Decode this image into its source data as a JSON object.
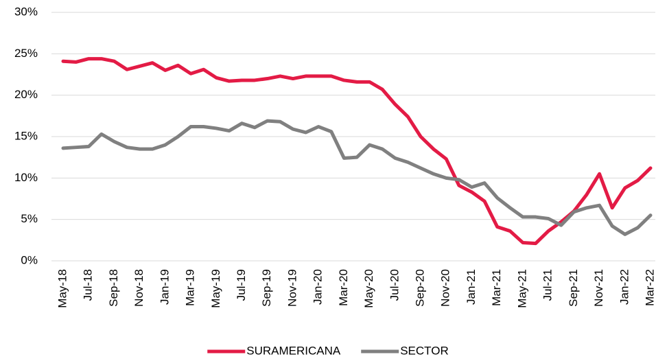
{
  "chart_data": {
    "type": "line",
    "categories": [
      "May-18",
      null,
      "Jul-18",
      null,
      "Sep-18",
      null,
      "Nov-18",
      null,
      "Jan-19",
      null,
      "Mar-19",
      null,
      "May-19",
      null,
      "Jul-19",
      null,
      "Sep-19",
      null,
      "Nov-19",
      null,
      "Jan-20",
      null,
      "Mar-20",
      null,
      "May-20",
      null,
      "Jul-20",
      null,
      "Sep-20",
      null,
      "Nov-20",
      null,
      "Jan-21",
      null,
      "Mar-21",
      null,
      "May-21",
      null,
      "Jul-21",
      null,
      "Sep-21",
      null,
      "Nov-21",
      null,
      "Jan-22",
      null,
      "Mar-22"
    ],
    "series": [
      {
        "name": "SURAMERICANA",
        "color": "#e31b45",
        "values": [
          24.1,
          24.0,
          24.4,
          24.4,
          24.1,
          23.1,
          23.5,
          23.9,
          23.0,
          23.6,
          22.6,
          23.1,
          22.1,
          21.7,
          21.8,
          21.8,
          22.0,
          22.3,
          22.0,
          22.3,
          22.3,
          22.3,
          21.8,
          21.6,
          21.6,
          20.7,
          18.9,
          17.4,
          15.0,
          13.5,
          12.3,
          9.1,
          8.3,
          7.2,
          4.1,
          3.6,
          2.2,
          2.1,
          3.6,
          4.7,
          6.0,
          8.0,
          10.5,
          6.4,
          8.8,
          9.7,
          11.2
        ]
      },
      {
        "name": "SECTOR",
        "color": "#808080",
        "values": [
          13.6,
          13.7,
          13.8,
          15.3,
          14.4,
          13.7,
          13.5,
          13.5,
          14.0,
          15.0,
          16.2,
          16.2,
          16.0,
          15.7,
          16.6,
          16.1,
          16.9,
          16.8,
          15.9,
          15.5,
          16.2,
          15.6,
          12.4,
          12.5,
          14.0,
          13.5,
          12.4,
          11.9,
          11.2,
          10.5,
          10.0,
          9.8,
          8.9,
          9.4,
          7.6,
          6.4,
          5.3,
          5.3,
          5.1,
          4.3,
          5.9,
          6.4,
          6.7,
          4.2,
          3.2,
          4.0,
          5.5
        ]
      }
    ],
    "ylim": [
      0,
      30
    ],
    "yticks": [
      {
        "value": 0,
        "label": "0%"
      },
      {
        "value": 5,
        "label": "5%"
      },
      {
        "value": 10,
        "label": "10%"
      },
      {
        "value": 15,
        "label": "15%"
      },
      {
        "value": 20,
        "label": "20%"
      },
      {
        "value": 25,
        "label": "25%"
      },
      {
        "value": 30,
        "label": "30%"
      }
    ],
    "grid": true,
    "legend": "bottom"
  }
}
